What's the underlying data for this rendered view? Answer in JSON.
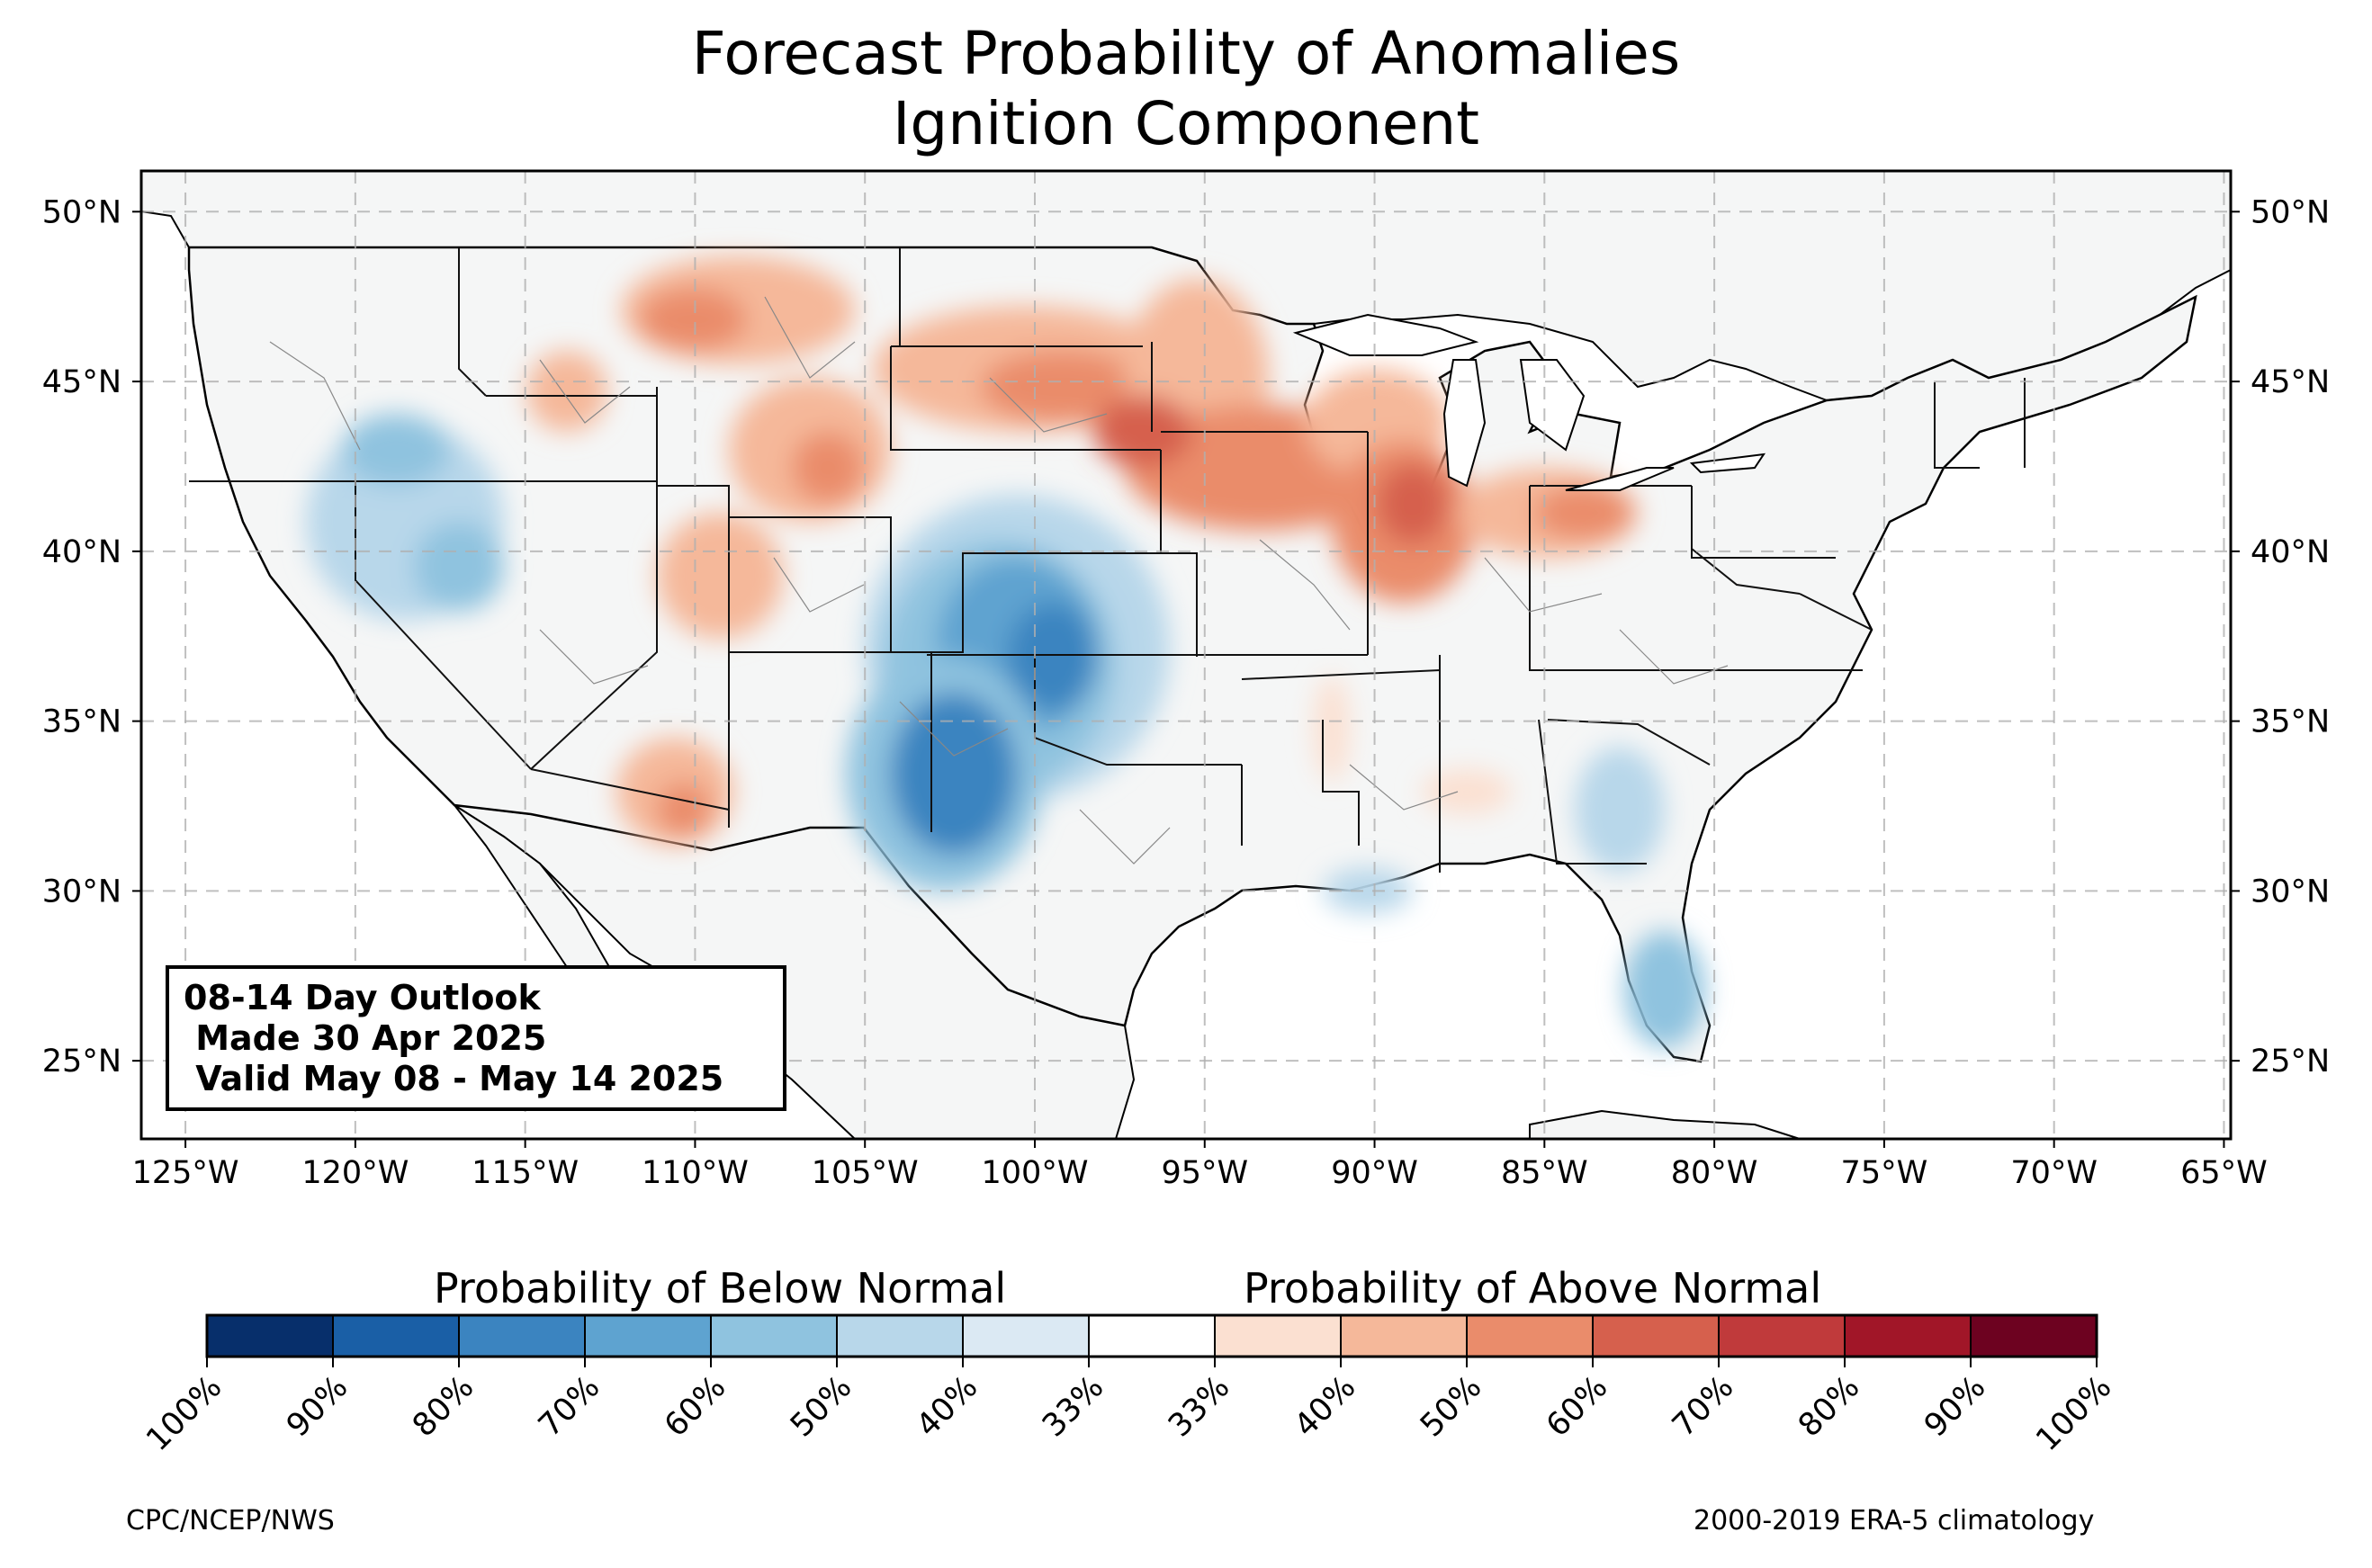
{
  "title_line1": "Forecast Probability of Anomalies",
  "title_line2": "Ignition Component",
  "outlook": {
    "line1": "08-14 Day Outlook",
    "line2": " Made 30 Apr 2025",
    "line3": " Valid May 08 - May 14 2025"
  },
  "map": {
    "lon_range": [
      -126.3,
      -64.8
    ],
    "lat_range": [
      22.7,
      51.2
    ],
    "lon_ticks": [
      {
        "value": -125,
        "label": "125°W"
      },
      {
        "value": -120,
        "label": "120°W"
      },
      {
        "value": -115,
        "label": "115°W"
      },
      {
        "value": -110,
        "label": "110°W"
      },
      {
        "value": -105,
        "label": "105°W"
      },
      {
        "value": -100,
        "label": "100°W"
      },
      {
        "value": -95,
        "label": "95°W"
      },
      {
        "value": -90,
        "label": "90°W"
      },
      {
        "value": -85,
        "label": "85°W"
      },
      {
        "value": -80,
        "label": "80°W"
      },
      {
        "value": -75,
        "label": "75°W"
      },
      {
        "value": -70,
        "label": "70°W"
      },
      {
        "value": -65,
        "label": "65°W"
      }
    ],
    "lat_ticks": [
      {
        "value": 25,
        "label": "25°N"
      },
      {
        "value": 30,
        "label": "30°N"
      },
      {
        "value": 35,
        "label": "35°N"
      },
      {
        "value": 40,
        "label": "40°N"
      },
      {
        "value": 45,
        "label": "45°N"
      },
      {
        "value": 50,
        "label": "50°N"
      }
    ]
  },
  "colorbar": {
    "below_label": "Probability of Below Normal",
    "above_label": "Probability of Above Normal",
    "tick_labels": [
      "100%",
      "90%",
      "80%",
      "70%",
      "60%",
      "50%",
      "40%",
      "33%",
      "33%",
      "40%",
      "50%",
      "60%",
      "70%",
      "80%",
      "90%",
      "100%"
    ],
    "colors": [
      "#072f6b",
      "#1a5fa6",
      "#3b84c0",
      "#5ea3d0",
      "#8fc3df",
      "#b8d7ea",
      "#dbe9f3",
      "#ffffff",
      "#fbe0d1",
      "#f5b89a",
      "#ea8c6b",
      "#d6604d",
      "#c03a3b",
      "#a11628",
      "#6d0220"
    ]
  },
  "footer": {
    "left": "CPC/NCEP/NWS",
    "right": "2000-2019 ERA-5 climatology"
  }
}
